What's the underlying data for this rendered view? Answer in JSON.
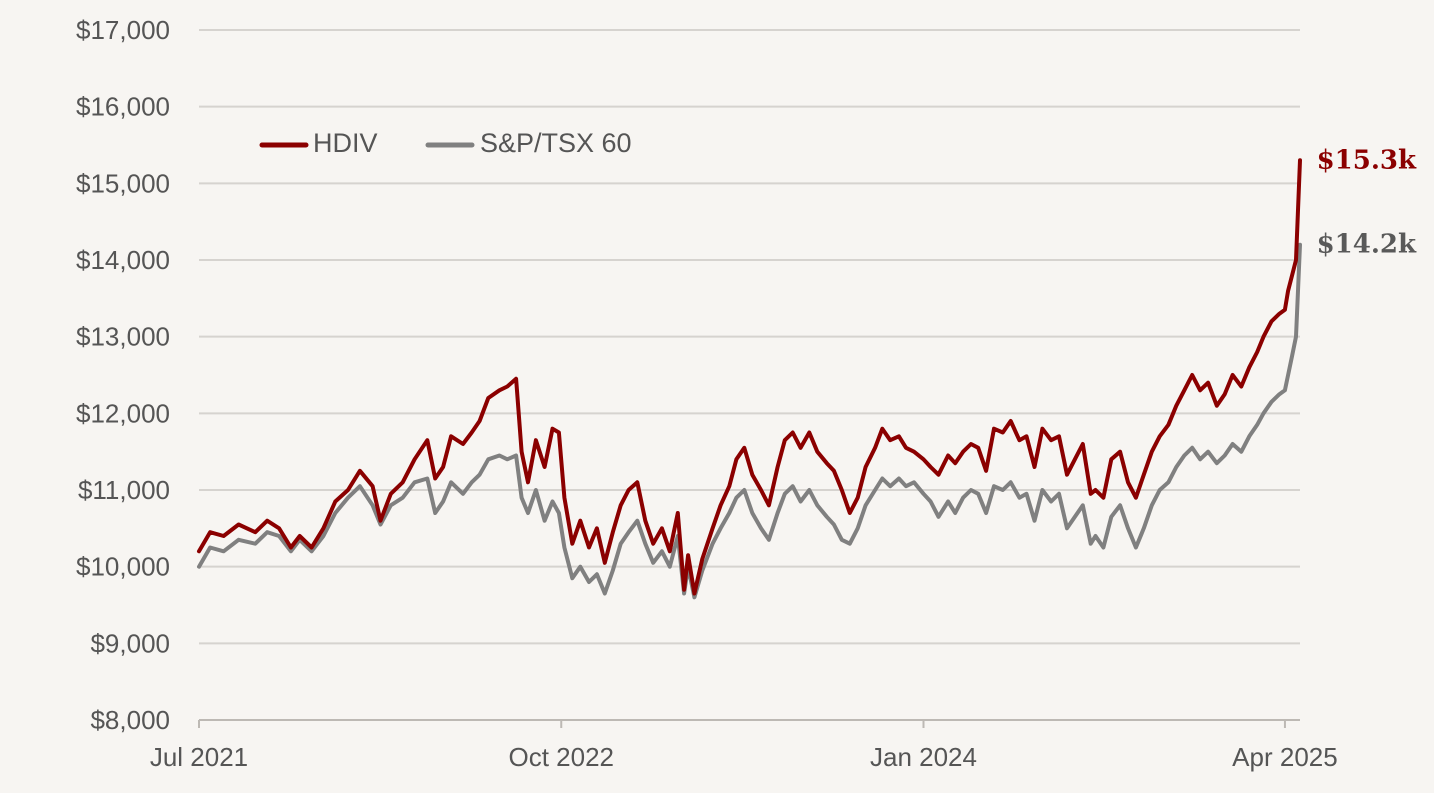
{
  "chart_data": {
    "type": "line",
    "title": "",
    "xlabel": "",
    "ylabel": "",
    "ylim": [
      8000,
      17000
    ],
    "y_ticks": [
      8000,
      9000,
      10000,
      11000,
      12000,
      13000,
      14000,
      15000,
      16000,
      17000
    ],
    "y_tick_labels": [
      "$8,000",
      "$9,000",
      "$10,000",
      "$11,000",
      "$12,000",
      "$13,000",
      "$14,000",
      "$15,000",
      "$16,000",
      "$17,000"
    ],
    "xlim": [
      "2021-07-01",
      "2025-04-20"
    ],
    "x_ticks": [
      "2021-07-01",
      "2022-10-01",
      "2024-01-01",
      "2025-04-01"
    ],
    "x_tick_labels": [
      "Jul 2021",
      "Oct 2022",
      "Jan 2024",
      "Apr 2025"
    ],
    "grid": "horizontal",
    "legend_position": "top-left",
    "series": [
      {
        "name": "HDIV",
        "color": "#8b0000",
        "end_label": "$15.3k",
        "points": [
          [
            "2021-07-01",
            10200
          ],
          [
            "2021-07-15",
            10450
          ],
          [
            "2021-08-01",
            10400
          ],
          [
            "2021-08-20",
            10550
          ],
          [
            "2021-09-10",
            10450
          ],
          [
            "2021-09-25",
            10600
          ],
          [
            "2021-10-10",
            10500
          ],
          [
            "2021-10-25",
            10250
          ],
          [
            "2021-11-05",
            10400
          ],
          [
            "2021-11-20",
            10250
          ],
          [
            "2021-12-05",
            10500
          ],
          [
            "2021-12-20",
            10850
          ],
          [
            "2022-01-05",
            11000
          ],
          [
            "2022-01-20",
            11250
          ],
          [
            "2022-02-05",
            11050
          ],
          [
            "2022-02-15",
            10600
          ],
          [
            "2022-02-28",
            10950
          ],
          [
            "2022-03-15",
            11100
          ],
          [
            "2022-03-30",
            11400
          ],
          [
            "2022-04-15",
            11650
          ],
          [
            "2022-04-25",
            11150
          ],
          [
            "2022-05-05",
            11300
          ],
          [
            "2022-05-15",
            11700
          ],
          [
            "2022-05-30",
            11600
          ],
          [
            "2022-06-10",
            11750
          ],
          [
            "2022-06-20",
            11900
          ],
          [
            "2022-07-01",
            12200
          ],
          [
            "2022-07-15",
            12300
          ],
          [
            "2022-07-25",
            12350
          ],
          [
            "2022-08-05",
            12450
          ],
          [
            "2022-08-12",
            11500
          ],
          [
            "2022-08-20",
            11100
          ],
          [
            "2022-08-30",
            11650
          ],
          [
            "2022-09-10",
            11300
          ],
          [
            "2022-09-20",
            11800
          ],
          [
            "2022-09-28",
            11750
          ],
          [
            "2022-10-05",
            10900
          ],
          [
            "2022-10-15",
            10300
          ],
          [
            "2022-10-25",
            10600
          ],
          [
            "2022-11-05",
            10250
          ],
          [
            "2022-11-15",
            10500
          ],
          [
            "2022-11-25",
            10050
          ],
          [
            "2022-12-05",
            10450
          ],
          [
            "2022-12-15",
            10800
          ],
          [
            "2022-12-25",
            11000
          ],
          [
            "2023-01-05",
            11100
          ],
          [
            "2023-01-15",
            10600
          ],
          [
            "2023-01-25",
            10300
          ],
          [
            "2023-02-05",
            10500
          ],
          [
            "2023-02-15",
            10200
          ],
          [
            "2023-02-25",
            10700
          ],
          [
            "2023-03-05",
            9700
          ],
          [
            "2023-03-10",
            10150
          ],
          [
            "2023-03-18",
            9650
          ],
          [
            "2023-03-28",
            10100
          ],
          [
            "2023-04-10",
            10500
          ],
          [
            "2023-04-20",
            10800
          ],
          [
            "2023-05-01",
            11050
          ],
          [
            "2023-05-10",
            11400
          ],
          [
            "2023-05-20",
            11550
          ],
          [
            "2023-05-30",
            11200
          ],
          [
            "2023-06-10",
            11000
          ],
          [
            "2023-06-20",
            10800
          ],
          [
            "2023-07-01",
            11300
          ],
          [
            "2023-07-10",
            11650
          ],
          [
            "2023-07-20",
            11750
          ],
          [
            "2023-07-30",
            11550
          ],
          [
            "2023-08-10",
            11750
          ],
          [
            "2023-08-20",
            11500
          ],
          [
            "2023-09-01",
            11350
          ],
          [
            "2023-09-10",
            11250
          ],
          [
            "2023-09-20",
            11000
          ],
          [
            "2023-09-30",
            10700
          ],
          [
            "2023-10-10",
            10900
          ],
          [
            "2023-10-20",
            11300
          ],
          [
            "2023-11-01",
            11550
          ],
          [
            "2023-11-10",
            11800
          ],
          [
            "2023-11-20",
            11650
          ],
          [
            "2023-12-01",
            11700
          ],
          [
            "2023-12-10",
            11550
          ],
          [
            "2023-12-20",
            11500
          ],
          [
            "2024-01-01",
            11400
          ],
          [
            "2024-01-10",
            11300
          ],
          [
            "2024-01-20",
            11200
          ],
          [
            "2024-02-01",
            11450
          ],
          [
            "2024-02-10",
            11350
          ],
          [
            "2024-02-20",
            11500
          ],
          [
            "2024-03-01",
            11600
          ],
          [
            "2024-03-10",
            11550
          ],
          [
            "2024-03-20",
            11250
          ],
          [
            "2024-03-30",
            11800
          ],
          [
            "2024-04-10",
            11750
          ],
          [
            "2024-04-20",
            11900
          ],
          [
            "2024-05-01",
            11650
          ],
          [
            "2024-05-10",
            11700
          ],
          [
            "2024-05-20",
            11300
          ],
          [
            "2024-05-30",
            11800
          ],
          [
            "2024-06-10",
            11650
          ],
          [
            "2024-06-20",
            11700
          ],
          [
            "2024-06-30",
            11200
          ],
          [
            "2024-07-10",
            11400
          ],
          [
            "2024-07-20",
            11600
          ],
          [
            "2024-07-30",
            10950
          ],
          [
            "2024-08-05",
            11000
          ],
          [
            "2024-08-15",
            10900
          ],
          [
            "2024-08-25",
            11400
          ],
          [
            "2024-09-05",
            11500
          ],
          [
            "2024-09-15",
            11100
          ],
          [
            "2024-09-25",
            10900
          ],
          [
            "2024-10-05",
            11200
          ],
          [
            "2024-10-15",
            11500
          ],
          [
            "2024-10-25",
            11700
          ],
          [
            "2024-11-05",
            11850
          ],
          [
            "2024-11-15",
            12100
          ],
          [
            "2024-11-25",
            12300
          ],
          [
            "2024-12-05",
            12500
          ],
          [
            "2024-12-15",
            12300
          ],
          [
            "2024-12-25",
            12400
          ],
          [
            "2025-01-05",
            12100
          ],
          [
            "2025-01-15",
            12250
          ],
          [
            "2025-01-25",
            12500
          ],
          [
            "2025-02-05",
            12350
          ],
          [
            "2025-02-15",
            12600
          ],
          [
            "2025-02-25",
            12800
          ],
          [
            "2025-03-05",
            13000
          ],
          [
            "2025-03-15",
            13200
          ],
          [
            "2025-03-25",
            13300
          ],
          [
            "2025-04-01",
            13350
          ],
          [
            "2025-04-05",
            13600
          ],
          [
            "2025-04-10",
            13800
          ],
          [
            "2025-04-15",
            14000
          ],
          [
            "2025-04-20",
            15300
          ]
        ]
      },
      {
        "name": "S&P/TSX 60",
        "color": "#808080",
        "end_label": "$14.2k",
        "points": [
          [
            "2021-07-01",
            10000
          ],
          [
            "2021-07-15",
            10250
          ],
          [
            "2021-08-01",
            10200
          ],
          [
            "2021-08-20",
            10350
          ],
          [
            "2021-09-10",
            10300
          ],
          [
            "2021-09-25",
            10450
          ],
          [
            "2021-10-10",
            10400
          ],
          [
            "2021-10-25",
            10200
          ],
          [
            "2021-11-05",
            10350
          ],
          [
            "2021-11-20",
            10200
          ],
          [
            "2021-12-05",
            10400
          ],
          [
            "2021-12-20",
            10700
          ],
          [
            "2022-01-05",
            10900
          ],
          [
            "2022-01-20",
            11050
          ],
          [
            "2022-02-05",
            10800
          ],
          [
            "2022-02-15",
            10550
          ],
          [
            "2022-02-28",
            10800
          ],
          [
            "2022-03-15",
            10900
          ],
          [
            "2022-03-30",
            11100
          ],
          [
            "2022-04-15",
            11150
          ],
          [
            "2022-04-25",
            10700
          ],
          [
            "2022-05-05",
            10850
          ],
          [
            "2022-05-15",
            11100
          ],
          [
            "2022-05-30",
            10950
          ],
          [
            "2022-06-10",
            11100
          ],
          [
            "2022-06-20",
            11200
          ],
          [
            "2022-07-01",
            11400
          ],
          [
            "2022-07-15",
            11450
          ],
          [
            "2022-07-25",
            11400
          ],
          [
            "2022-08-05",
            11450
          ],
          [
            "2022-08-12",
            10900
          ],
          [
            "2022-08-20",
            10700
          ],
          [
            "2022-08-30",
            11000
          ],
          [
            "2022-09-10",
            10600
          ],
          [
            "2022-09-20",
            10850
          ],
          [
            "2022-09-28",
            10700
          ],
          [
            "2022-10-05",
            10250
          ],
          [
            "2022-10-15",
            9850
          ],
          [
            "2022-10-25",
            10000
          ],
          [
            "2022-11-05",
            9800
          ],
          [
            "2022-11-15",
            9900
          ],
          [
            "2022-11-25",
            9650
          ],
          [
            "2022-12-05",
            9950
          ],
          [
            "2022-12-15",
            10300
          ],
          [
            "2022-12-25",
            10450
          ],
          [
            "2023-01-05",
            10600
          ],
          [
            "2023-01-15",
            10300
          ],
          [
            "2023-01-25",
            10050
          ],
          [
            "2023-02-05",
            10200
          ],
          [
            "2023-02-15",
            10000
          ],
          [
            "2023-02-25",
            10400
          ],
          [
            "2023-03-05",
            9650
          ],
          [
            "2023-03-10",
            10000
          ],
          [
            "2023-03-18",
            9600
          ],
          [
            "2023-03-28",
            9950
          ],
          [
            "2023-04-10",
            10300
          ],
          [
            "2023-04-20",
            10500
          ],
          [
            "2023-05-01",
            10700
          ],
          [
            "2023-05-10",
            10900
          ],
          [
            "2023-05-20",
            11000
          ],
          [
            "2023-05-30",
            10700
          ],
          [
            "2023-06-10",
            10500
          ],
          [
            "2023-06-20",
            10350
          ],
          [
            "2023-07-01",
            10700
          ],
          [
            "2023-07-10",
            10950
          ],
          [
            "2023-07-20",
            11050
          ],
          [
            "2023-07-30",
            10850
          ],
          [
            "2023-08-10",
            11000
          ],
          [
            "2023-08-20",
            10800
          ],
          [
            "2023-09-01",
            10650
          ],
          [
            "2023-09-10",
            10550
          ],
          [
            "2023-09-20",
            10350
          ],
          [
            "2023-09-30",
            10300
          ],
          [
            "2023-10-10",
            10500
          ],
          [
            "2023-10-20",
            10800
          ],
          [
            "2023-11-01",
            11000
          ],
          [
            "2023-11-10",
            11150
          ],
          [
            "2023-11-20",
            11050
          ],
          [
            "2023-12-01",
            11150
          ],
          [
            "2023-12-10",
            11050
          ],
          [
            "2023-12-20",
            11100
          ],
          [
            "2024-01-01",
            10950
          ],
          [
            "2024-01-10",
            10850
          ],
          [
            "2024-01-20",
            10650
          ],
          [
            "2024-02-01",
            10850
          ],
          [
            "2024-02-10",
            10700
          ],
          [
            "2024-02-20",
            10900
          ],
          [
            "2024-03-01",
            11000
          ],
          [
            "2024-03-10",
            10950
          ],
          [
            "2024-03-20",
            10700
          ],
          [
            "2024-03-30",
            11050
          ],
          [
            "2024-04-10",
            11000
          ],
          [
            "2024-04-20",
            11100
          ],
          [
            "2024-05-01",
            10900
          ],
          [
            "2024-05-10",
            10950
          ],
          [
            "2024-05-20",
            10600
          ],
          [
            "2024-05-30",
            11000
          ],
          [
            "2024-06-10",
            10850
          ],
          [
            "2024-06-20",
            10950
          ],
          [
            "2024-06-30",
            10500
          ],
          [
            "2024-07-10",
            10650
          ],
          [
            "2024-07-20",
            10800
          ],
          [
            "2024-07-30",
            10300
          ],
          [
            "2024-08-05",
            10400
          ],
          [
            "2024-08-15",
            10250
          ],
          [
            "2024-08-25",
            10650
          ],
          [
            "2024-09-05",
            10800
          ],
          [
            "2024-09-15",
            10500
          ],
          [
            "2024-09-25",
            10250
          ],
          [
            "2024-10-05",
            10500
          ],
          [
            "2024-10-15",
            10800
          ],
          [
            "2024-10-25",
            11000
          ],
          [
            "2024-11-05",
            11100
          ],
          [
            "2024-11-15",
            11300
          ],
          [
            "2024-11-25",
            11450
          ],
          [
            "2024-12-05",
            11550
          ],
          [
            "2024-12-15",
            11400
          ],
          [
            "2024-12-25",
            11500
          ],
          [
            "2025-01-05",
            11350
          ],
          [
            "2025-01-15",
            11450
          ],
          [
            "2025-01-25",
            11600
          ],
          [
            "2025-02-05",
            11500
          ],
          [
            "2025-02-15",
            11700
          ],
          [
            "2025-02-25",
            11850
          ],
          [
            "2025-03-05",
            12000
          ],
          [
            "2025-03-15",
            12150
          ],
          [
            "2025-03-25",
            12250
          ],
          [
            "2025-04-01",
            12300
          ],
          [
            "2025-04-05",
            12500
          ],
          [
            "2025-04-10",
            12750
          ],
          [
            "2025-04-15",
            13000
          ],
          [
            "2025-04-20",
            14200
          ]
        ]
      }
    ]
  }
}
